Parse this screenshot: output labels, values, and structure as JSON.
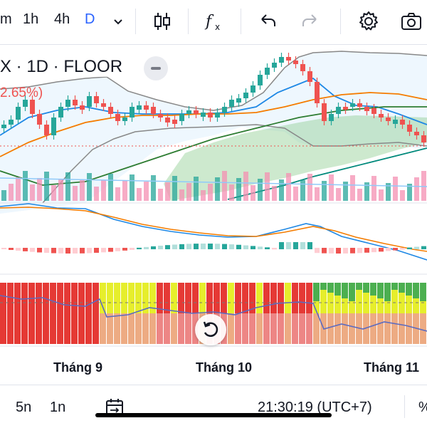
{
  "toolbar": {
    "interval_partial": "m",
    "interval_1h": "1h",
    "interval_4h": "4h",
    "interval_d": "D",
    "icons": [
      "chevron-down-icon",
      "candles-icon",
      "indicator-fx-icon",
      "undo-icon",
      "redo-icon",
      "settings-icon",
      "camera-icon"
    ]
  },
  "legend": {
    "title": "X · 1D · FLOOR",
    "change": "2.65%)"
  },
  "colors": {
    "up": "#26a69a",
    "down": "#ef5350",
    "accent": "#2962ff"
  },
  "chart_data": {
    "type": "candlestick",
    "x_labels": [
      "Tháng 9",
      "Tháng 10",
      "Tháng 11"
    ]
  },
  "bottom": {
    "range_5n": "5n",
    "range_1n": "1n",
    "time": "21:30:19 (UTC+7)",
    "percent": "%"
  }
}
